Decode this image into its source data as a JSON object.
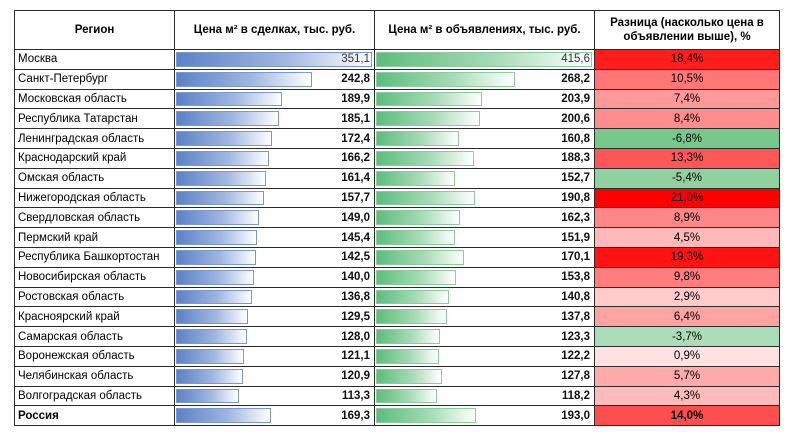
{
  "header": {
    "region": "Регион",
    "deals": "Цена м² в сделках, тыс. руб.",
    "ads": "Цена м² в объявлениях, тыс. руб.",
    "diff": "Разница (насколько цена в объявлении выше), %"
  },
  "colors": {
    "deal_bar": "#5b82c7",
    "ad_bar": "#5dbd7c",
    "positive_diff": "#ff0000",
    "negative_diff": "#63be7b"
  },
  "chart_data": {
    "type": "table",
    "columns": [
      "Регион",
      "Цена м² в сделках, тыс. руб.",
      "Цена м² в объявлениях, тыс. руб.",
      "Разница (насколько цена в объявлении выше), %"
    ],
    "scale_max": {
      "deals": 351.1,
      "ads": 415.6
    },
    "rows": [
      {
        "region": "Москва",
        "deal": "351,1",
        "deal_v": 351.1,
        "ad": "415,6",
        "ad_v": 415.6,
        "diff": "18,4%",
        "diff_v": 18.4
      },
      {
        "region": "Санкт-Петербург",
        "deal": "242,8",
        "deal_v": 242.8,
        "ad": "268,2",
        "ad_v": 268.2,
        "diff": "10,5%",
        "diff_v": 10.5
      },
      {
        "region": "Московская область",
        "deal": "189,9",
        "deal_v": 189.9,
        "ad": "203,9",
        "ad_v": 203.9,
        "diff": "7,4%",
        "diff_v": 7.4
      },
      {
        "region": "Республика Татарстан",
        "deal": "185,1",
        "deal_v": 185.1,
        "ad": "200,6",
        "ad_v": 200.6,
        "diff": "8,4%",
        "diff_v": 8.4
      },
      {
        "region": "Ленинградская область",
        "deal": "172,4",
        "deal_v": 172.4,
        "ad": "160,8",
        "ad_v": 160.8,
        "diff": "-6,8%",
        "diff_v": -6.8
      },
      {
        "region": "Краснодарский край",
        "deal": "166,2",
        "deal_v": 166.2,
        "ad": "188,3",
        "ad_v": 188.3,
        "diff": "13,3%",
        "diff_v": 13.3
      },
      {
        "region": "Омская область",
        "deal": "161,4",
        "deal_v": 161.4,
        "ad": "152,7",
        "ad_v": 152.7,
        "diff": "-5,4%",
        "diff_v": -5.4
      },
      {
        "region": "Нижегородская область",
        "deal": "157,7",
        "deal_v": 157.7,
        "ad": "190,8",
        "ad_v": 190.8,
        "diff": "21,0%",
        "diff_v": 21.0
      },
      {
        "region": "Свердловская область",
        "deal": "149,0",
        "deal_v": 149.0,
        "ad": "162,3",
        "ad_v": 162.3,
        "diff": "8,9%",
        "diff_v": 8.9
      },
      {
        "region": "Пермский край",
        "deal": "145,4",
        "deal_v": 145.4,
        "ad": "151,9",
        "ad_v": 151.9,
        "diff": "4,5%",
        "diff_v": 4.5
      },
      {
        "region": "Республика Башкортостан",
        "deal": "142,5",
        "deal_v": 142.5,
        "ad": "170,1",
        "ad_v": 170.1,
        "diff": "19,3%",
        "diff_v": 19.3
      },
      {
        "region": "Новосибирская область",
        "deal": "140,0",
        "deal_v": 140.0,
        "ad": "153,8",
        "ad_v": 153.8,
        "diff": "9,8%",
        "diff_v": 9.8
      },
      {
        "region": "Ростовская область",
        "deal": "136,8",
        "deal_v": 136.8,
        "ad": "140,8",
        "ad_v": 140.8,
        "diff": "2,9%",
        "diff_v": 2.9
      },
      {
        "region": "Красноярский край",
        "deal": "129,5",
        "deal_v": 129.5,
        "ad": "137,8",
        "ad_v": 137.8,
        "diff": "6,4%",
        "diff_v": 6.4
      },
      {
        "region": "Самарская область",
        "deal": "128,0",
        "deal_v": 128.0,
        "ad": "123,3",
        "ad_v": 123.3,
        "diff": "-3,7%",
        "diff_v": -3.7
      },
      {
        "region": "Воронежская область",
        "deal": "121,1",
        "deal_v": 121.1,
        "ad": "122,2",
        "ad_v": 122.2,
        "diff": "0,9%",
        "diff_v": 0.9
      },
      {
        "region": "Челябинская область",
        "deal": "120,9",
        "deal_v": 120.9,
        "ad": "127,8",
        "ad_v": 127.8,
        "diff": "5,7%",
        "diff_v": 5.7
      },
      {
        "region": "Волгоградская область",
        "deal": "113,3",
        "deal_v": 113.3,
        "ad": "118,2",
        "ad_v": 118.2,
        "diff": "4,3%",
        "diff_v": 4.3
      },
      {
        "region": "Россия",
        "deal": "169,3",
        "deal_v": 169.3,
        "ad": "193,0",
        "ad_v": 193.0,
        "diff": "14,0%",
        "diff_v": 14.0,
        "total": true
      }
    ]
  }
}
